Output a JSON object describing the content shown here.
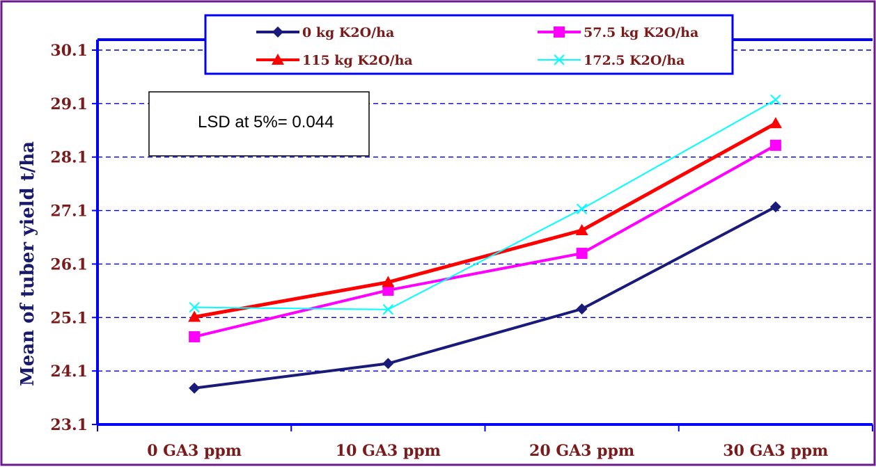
{
  "chart_data": {
    "type": "line",
    "categories": [
      "0 GA3 ppm",
      "10 GA3 ppm",
      "20 GA3 ppm",
      "30 GA3 ppm"
    ],
    "ylabel": "Mean of tuber yield t/ha",
    "xlabel": "",
    "title": "",
    "ylim": [
      23.1,
      30.1
    ],
    "yticks": [
      "23.1",
      "24.1",
      "25.1",
      "26.1",
      "27.1",
      "28.1",
      "29.1",
      "30.1"
    ],
    "grid": true,
    "legend_placement": "top",
    "annotation": "LSD at 5%= 0.044",
    "series": [
      {
        "name": "0 kg K2O/ha",
        "color": "#1a1a7a",
        "marker": "diamond",
        "values": [
          23.78,
          24.24,
          25.26,
          27.17
        ]
      },
      {
        "name": "57.5 kg K2O/ha",
        "color": "#ff00ff",
        "marker": "square",
        "values": [
          24.74,
          25.61,
          26.3,
          28.32
        ]
      },
      {
        "name": "115 kg K2O/ha",
        "color": "#ff0000",
        "marker": "triangle",
        "values": [
          25.11,
          25.76,
          26.73,
          28.73
        ]
      },
      {
        "name": "172.5 K2O/ha",
        "color": "#00ffff",
        "marker": "cross",
        "values": [
          25.29,
          25.25,
          27.13,
          29.17
        ]
      }
    ]
  }
}
